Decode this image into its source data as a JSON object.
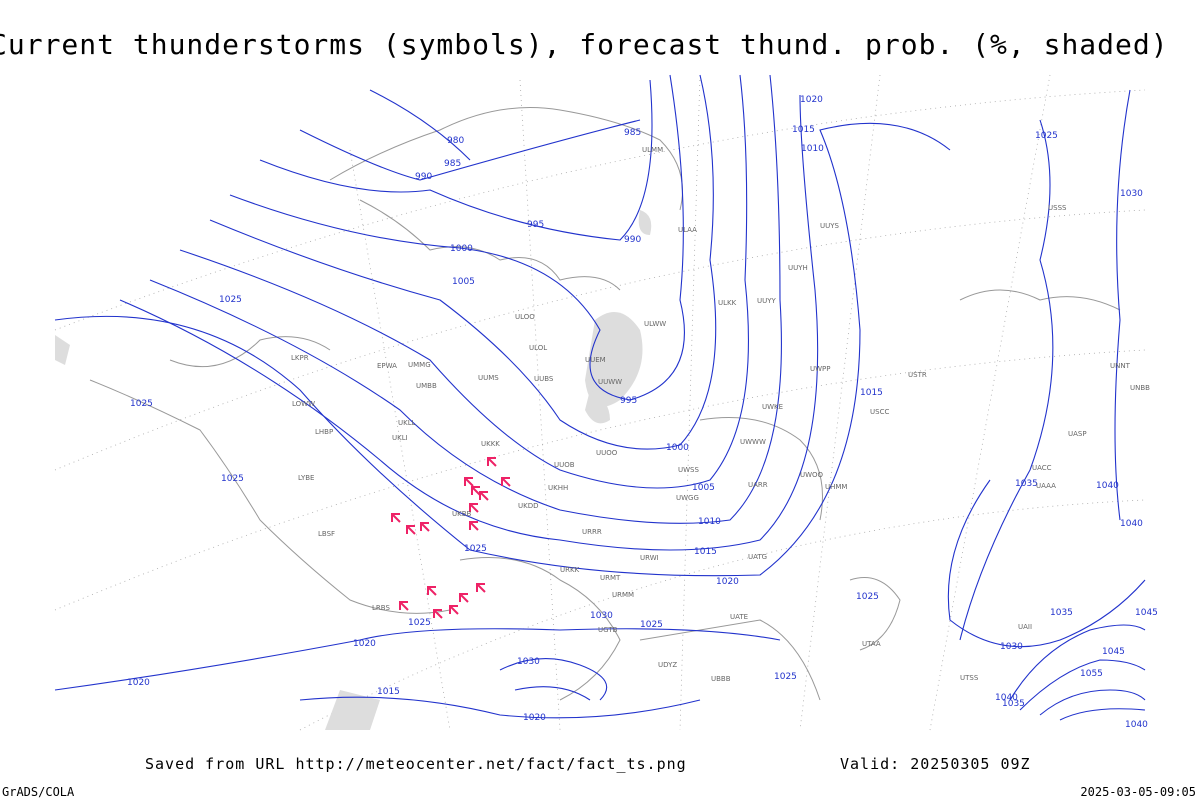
{
  "title": "Current thunderstorms (symbols), forecast thund. prob. (%, shaded)",
  "footer": {
    "saved": "Saved from URL http://meteocenter.net/fact/fact_ts.png",
    "valid": "Valid: 20250305 09Z",
    "credit": "GrADS/COLA",
    "timestamp": "2025-03-05-09:05"
  },
  "isobar_labels": [
    "980",
    "985",
    "985",
    "990",
    "995",
    "990",
    "1000",
    "1005",
    "995",
    "1000",
    "1005",
    "1010",
    "1015",
    "1020",
    "1025",
    "1025",
    "1025",
    "1025",
    "1025",
    "1020",
    "1020",
    "1015",
    "1020",
    "1030",
    "1025",
    "1025",
    "1025",
    "1030",
    "1020",
    "1015",
    "1010",
    "1015",
    "1025",
    "1030",
    "1035",
    "1040",
    "1040",
    "1030",
    "1040",
    "1035",
    "1045",
    "1035",
    "1045",
    "1055",
    "1040"
  ],
  "station_labels": [
    "ULMM",
    "ULAA",
    "ULOL",
    "ULOO",
    "UUWW",
    "UUEM",
    "ULWW",
    "UUYH",
    "UUYS",
    "UUYY",
    "ULKK",
    "UUBS",
    "UUMS",
    "UMMG",
    "UMBB",
    "EPWA",
    "LKPR",
    "LOWW",
    "LHBP",
    "LRBS",
    "LBSF",
    "LYBE",
    "UKKK",
    "UKLL",
    "UKLI",
    "UKBB",
    "UKDD",
    "UKHH",
    "UUOB",
    "UUOO",
    "UWPP",
    "UWKE",
    "UWWW",
    "UWGG",
    "UWSS",
    "UATG",
    "UARR",
    "URWI",
    "URRR",
    "URKK",
    "URMM",
    "URMT",
    "UGTB",
    "UBBB",
    "UDYZ",
    "UATE",
    "UTAA",
    "UTSS",
    "UAII",
    "UACC",
    "UAAA",
    "UASP",
    "UNBB",
    "UNNT",
    "USSS",
    "USTR",
    "USCC",
    "UWOO",
    "UHMM"
  ]
}
